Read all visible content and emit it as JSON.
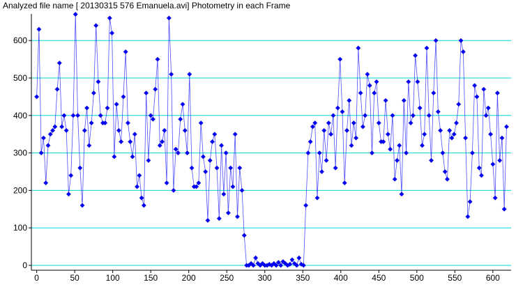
{
  "chart_data": {
    "type": "line",
    "title": "Analyzed file name [ 20130315 576 Emanuela.avi]   Photometry in each Frame",
    "x": [
      0,
      3,
      6,
      9,
      12,
      15,
      18,
      21,
      24,
      27,
      30,
      33,
      36,
      39,
      42,
      45,
      48,
      51,
      54,
      57,
      60,
      63,
      66,
      69,
      72,
      75,
      78,
      81,
      84,
      87,
      90,
      93,
      96,
      99,
      102,
      105,
      108,
      111,
      114,
      117,
      120,
      123,
      126,
      129,
      132,
      135,
      138,
      141,
      144,
      147,
      150,
      153,
      156,
      159,
      162,
      165,
      168,
      171,
      174,
      177,
      180,
      183,
      186,
      189,
      192,
      195,
      198,
      201,
      204,
      207,
      210,
      213,
      216,
      219,
      222,
      225,
      228,
      231,
      234,
      237,
      240,
      243,
      246,
      249,
      252,
      255,
      258,
      261,
      264,
      267,
      270,
      273,
      276,
      279,
      282,
      285,
      288,
      291,
      294,
      297,
      300,
      303,
      306,
      309,
      312,
      315,
      318,
      321,
      324,
      327,
      330,
      333,
      336,
      339,
      342,
      345,
      348,
      351,
      354,
      357,
      360,
      363,
      366,
      369,
      372,
      375,
      378,
      381,
      384,
      387,
      390,
      393,
      396,
      399,
      402,
      405,
      408,
      411,
      414,
      417,
      420,
      423,
      426,
      429,
      432,
      435,
      438,
      441,
      444,
      447,
      450,
      453,
      456,
      459,
      462,
      465,
      468,
      471,
      474,
      477,
      480,
      483,
      486,
      489,
      492,
      495,
      498,
      501,
      504,
      507,
      510,
      513,
      516,
      519,
      522,
      525,
      528,
      531,
      534,
      537,
      540,
      543,
      546,
      549,
      552,
      555,
      558,
      561,
      564,
      567,
      570,
      573,
      576,
      579,
      582,
      585,
      588,
      591,
      594,
      597,
      600,
      603,
      606,
      609,
      612,
      615,
      618
    ],
    "values": [
      450,
      630,
      300,
      340,
      220,
      320,
      350,
      360,
      370,
      470,
      540,
      370,
      400,
      360,
      190,
      240,
      400,
      670,
      400,
      260,
      160,
      360,
      420,
      320,
      380,
      460,
      640,
      490,
      400,
      380,
      380,
      420,
      660,
      620,
      290,
      430,
      360,
      330,
      450,
      570,
      380,
      330,
      290,
      350,
      210,
      240,
      180,
      160,
      460,
      280,
      400,
      390,
      470,
      550,
      320,
      330,
      360,
      220,
      660,
      510,
      200,
      310,
      300,
      390,
      430,
      360,
      300,
      510,
      260,
      210,
      210,
      220,
      380,
      290,
      250,
      120,
      280,
      330,
      350,
      260,
      125,
      320,
      190,
      300,
      140,
      260,
      210,
      350,
      130,
      260,
      200,
      80,
      0,
      0,
      5,
      0,
      20,
      5,
      0,
      5,
      0,
      0,
      3,
      0,
      5,
      0,
      8,
      0,
      10,
      5,
      0,
      3,
      15,
      5,
      0,
      20,
      3,
      0,
      160,
      300,
      330,
      370,
      380,
      180,
      300,
      250,
      360,
      280,
      380,
      350,
      400,
      260,
      420,
      550,
      410,
      220,
      360,
      440,
      320,
      380,
      340,
      580,
      460,
      370,
      400,
      510,
      480,
      300,
      460,
      490,
      380,
      330,
      330,
      440,
      350,
      310,
      400,
      230,
      280,
      320,
      190,
      440,
      300,
      490,
      380,
      400,
      560,
      490,
      420,
      320,
      350,
      580,
      400,
      280,
      460,
      600,
      410,
      360,
      300,
      250,
      230,
      360,
      340,
      350,
      380,
      430,
      600,
      570,
      340,
      130,
      170,
      300,
      480,
      450,
      260,
      240,
      470,
      400,
      420,
      350,
      270,
      180,
      460,
      280,
      340,
      150,
      370
    ],
    "color": "#0000ff",
    "marker": "diamond",
    "xlim": [
      -7,
      624
    ],
    "ylim": [
      -13,
      671
    ],
    "xticks": [
      0,
      50,
      100,
      150,
      200,
      250,
      300,
      350,
      400,
      450,
      500,
      550,
      600
    ],
    "yticks": [
      0,
      100,
      200,
      300,
      400,
      500,
      600
    ],
    "grid": true,
    "grid_color": "#00d8d8"
  }
}
